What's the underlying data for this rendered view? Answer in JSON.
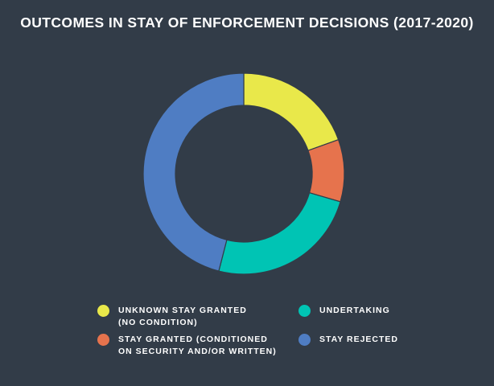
{
  "chart_data": {
    "type": "pie",
    "title": "OUTCOMES IN STAY OF ENFORCEMENT DECISIONS (2017-2020)",
    "donut": true,
    "categories": [
      "UNKNOWN STAY GRANTED\n(NO CONDITION)",
      "STAY GRANTED (CONDITIONED\nON SECURITY AND/OR WRITTEN)",
      "UNDERTAKING",
      "STAY REJECTED"
    ],
    "values": [
      19.5,
      10,
      24.5,
      46
    ],
    "colors": [
      "#e9e84a",
      "#e6734d",
      "#00c4b4",
      "#4f7dc3"
    ],
    "legend_placement": "bottom"
  },
  "legend": [
    {
      "label": "UNKNOWN STAY GRANTED\n(NO CONDITION)",
      "color": "#e9e84a"
    },
    {
      "label": "STAY GRANTED (CONDITIONED\nON SECURITY AND/OR WRITTEN)",
      "color": "#e6734d"
    },
    {
      "label": "UNDERTAKING",
      "color": "#00c4b4"
    },
    {
      "label": "STAY REJECTED",
      "color": "#4f7dc3"
    }
  ]
}
